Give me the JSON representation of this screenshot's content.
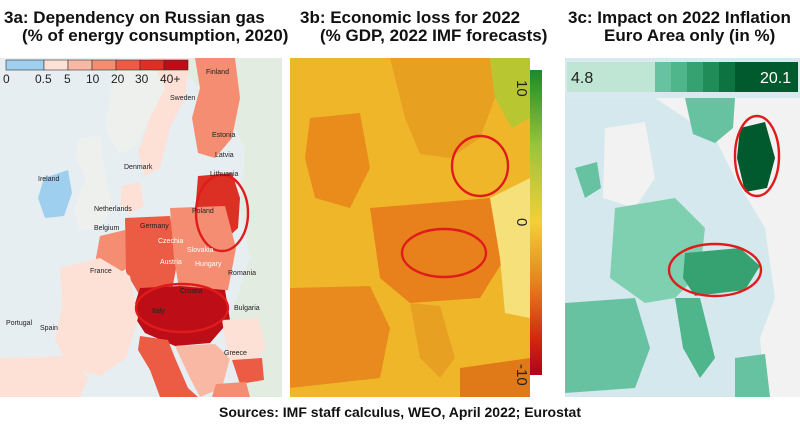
{
  "panel_a": {
    "title": "3a: Dependency on Russian gas",
    "subtitle": "(% of energy consumption, 2020)",
    "legend": {
      "ticks": [
        "0",
        "0.5",
        "5",
        "10",
        "20",
        "30",
        "40+"
      ],
      "colors": [
        "#9fcfee",
        "#fde0d6",
        "#f9b8a3",
        "#f48d72",
        "#ec5c45",
        "#dc3025",
        "#bd0e17"
      ]
    },
    "labels": {
      "finland": "Finland",
      "sweden": "Sweden",
      "estonia": "Estonia",
      "latvia": "Latvia",
      "lithuania": "Lithuania",
      "denmark": "Denmark",
      "ireland": "Ireland",
      "netherlands": "Netherlands",
      "belgium": "Belgium",
      "germany": "Germany",
      "poland": "Poland",
      "czechia": "Czechia",
      "slovakia": "Slovakia",
      "austria": "Austria",
      "hungary": "Hungary",
      "france": "France",
      "croatia": "Croatia",
      "romania": "Romania",
      "bulgaria": "Bulgaria",
      "italy": "Italy",
      "portugal": "Portugal",
      "spain": "Spain",
      "greece": "Greece"
    }
  },
  "panel_b": {
    "title": "3b: Economic loss for 2022",
    "subtitle": "(% GDP, 2022 IMF forecasts)",
    "colorbar": {
      "ticks": [
        "10",
        "0",
        "-10"
      ],
      "colors": [
        "#1b8a2e",
        "#9cc43a",
        "#f2d036",
        "#e8801c",
        "#cf2a10",
        "#b3001a"
      ]
    }
  },
  "panel_c": {
    "title": "3c: Impact on 2022 Inflation",
    "subtitle": "Euro Area only (in %)",
    "legend": {
      "min_label": "4.8",
      "max_label": "20.1",
      "colors": [
        "#66c2a0",
        "#4fb58b",
        "#36a272",
        "#208c58",
        "#0d7340",
        "#005a2e"
      ]
    }
  },
  "source": "Sources: IMF staff calculus, WEO, April 2022; Eurostat"
}
